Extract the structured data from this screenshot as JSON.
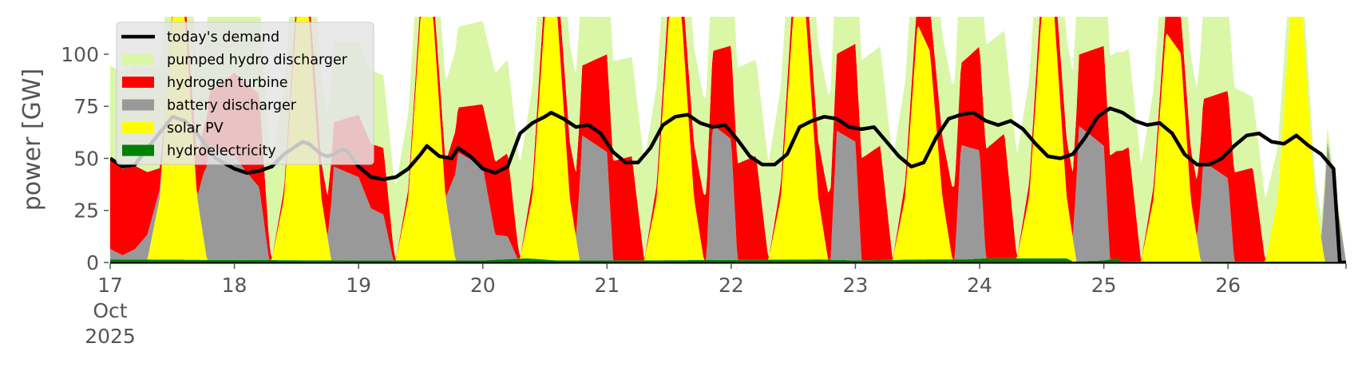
{
  "chart_data": {
    "type": "area",
    "title": "",
    "xlabel": "",
    "ylabel": "power [GW]",
    "xlim": [
      0,
      9.95
    ],
    "ylim": [
      0,
      118
    ],
    "grid": false,
    "stacked": true,
    "legend_position": "top-left",
    "x_unit": "days from 17 Oct 2025",
    "x_ticks": [
      {
        "x": 0,
        "lines": [
          "17",
          "Oct",
          "2025"
        ]
      },
      {
        "x": 1,
        "lines": [
          "18"
        ]
      },
      {
        "x": 2,
        "lines": [
          "19"
        ]
      },
      {
        "x": 3,
        "lines": [
          "20"
        ]
      },
      {
        "x": 4,
        "lines": [
          "21"
        ]
      },
      {
        "x": 5,
        "lines": [
          "22"
        ]
      },
      {
        "x": 6,
        "lines": [
          "23"
        ]
      },
      {
        "x": 7,
        "lines": [
          "24"
        ]
      },
      {
        "x": 8,
        "lines": [
          "25"
        ]
      },
      {
        "x": 9,
        "lines": [
          "26"
        ]
      }
    ],
    "y_ticks": [
      0,
      25,
      50,
      75,
      100
    ],
    "colors": {
      "demand": "#000000",
      "pumped_hydro": "#d9f7a6",
      "hydrogen": "#ff0000",
      "battery": "#999999",
      "solar": "#ffff00",
      "hydro": "#008000",
      "legend_bg": "#e5e5e5"
    },
    "legend": [
      {
        "label": "today's demand",
        "key": "demand",
        "kind": "line"
      },
      {
        "label": "pumped hydro discharger",
        "key": "pumped_hydro",
        "kind": "patch"
      },
      {
        "label": "hydrogen turbine",
        "key": "hydrogen",
        "kind": "patch"
      },
      {
        "label": "battery discharger",
        "key": "battery",
        "kind": "patch"
      },
      {
        "label": "solar PV",
        "key": "solar",
        "kind": "patch"
      },
      {
        "label": "hydroelectricity",
        "key": "hydro",
        "kind": "patch"
      }
    ],
    "series": [
      {
        "key": "hydro",
        "points": [
          [
            0,
            1.5
          ],
          [
            1,
            1.2
          ],
          [
            2,
            1
          ],
          [
            3,
            1
          ],
          [
            3.35,
            2
          ],
          [
            3.6,
            1
          ],
          [
            4,
            1
          ],
          [
            5,
            1.2
          ],
          [
            5.7,
            1.5
          ],
          [
            6,
            1
          ],
          [
            6.6,
            1.5
          ],
          [
            6.9,
            1.5
          ],
          [
            7.05,
            2
          ],
          [
            7.7,
            2
          ],
          [
            7.75,
            0.5
          ],
          [
            8,
            1
          ],
          [
            8.1,
            2
          ],
          [
            8.15,
            0.5
          ],
          [
            9,
            0.5
          ],
          [
            9.95,
            0.5
          ]
        ]
      },
      {
        "key": "solar",
        "points": [
          [
            0,
            0
          ],
          [
            0.3,
            0
          ],
          [
            0.4,
            30
          ],
          [
            0.5,
            118
          ],
          [
            0.6,
            118
          ],
          [
            0.7,
            30
          ],
          [
            0.78,
            0
          ],
          [
            1.3,
            0
          ],
          [
            1.4,
            30
          ],
          [
            1.5,
            118
          ],
          [
            1.6,
            118
          ],
          [
            1.7,
            30
          ],
          [
            1.78,
            0
          ],
          [
            2.3,
            0
          ],
          [
            2.4,
            30
          ],
          [
            2.5,
            118
          ],
          [
            2.6,
            118
          ],
          [
            2.7,
            30
          ],
          [
            2.78,
            0
          ],
          [
            3.3,
            0
          ],
          [
            3.4,
            30
          ],
          [
            3.5,
            118
          ],
          [
            3.6,
            118
          ],
          [
            3.7,
            30
          ],
          [
            3.78,
            0
          ],
          [
            4.3,
            0
          ],
          [
            4.4,
            30
          ],
          [
            4.5,
            118
          ],
          [
            4.6,
            118
          ],
          [
            4.7,
            30
          ],
          [
            4.78,
            0
          ],
          [
            5.3,
            0
          ],
          [
            5.4,
            30
          ],
          [
            5.5,
            118
          ],
          [
            5.6,
            118
          ],
          [
            5.7,
            30
          ],
          [
            5.78,
            0
          ],
          [
            6.3,
            0
          ],
          [
            6.4,
            30
          ],
          [
            6.5,
            113
          ],
          [
            6.6,
            100
          ],
          [
            6.7,
            30
          ],
          [
            6.78,
            0
          ],
          [
            7.3,
            0
          ],
          [
            7.4,
            30
          ],
          [
            7.5,
            118
          ],
          [
            7.6,
            118
          ],
          [
            7.7,
            30
          ],
          [
            7.78,
            0
          ],
          [
            8.3,
            0
          ],
          [
            8.4,
            30
          ],
          [
            8.5,
            110
          ],
          [
            8.62,
            100
          ],
          [
            8.7,
            30
          ],
          [
            8.78,
            0
          ],
          [
            9.3,
            0
          ],
          [
            9.4,
            30
          ],
          [
            9.5,
            118
          ],
          [
            9.6,
            118
          ],
          [
            9.7,
            30
          ],
          [
            9.78,
            0
          ],
          [
            9.95,
            0
          ]
        ]
      },
      {
        "key": "battery",
        "points": [
          [
            0,
            5
          ],
          [
            0.1,
            2
          ],
          [
            0.2,
            5
          ],
          [
            0.3,
            12
          ],
          [
            0.45,
            0
          ],
          [
            0.7,
            0
          ],
          [
            0.75,
            30
          ],
          [
            0.8,
            55
          ],
          [
            1,
            50
          ],
          [
            1.1,
            42
          ],
          [
            1.2,
            35
          ],
          [
            1.28,
            0
          ],
          [
            1.75,
            0
          ],
          [
            1.8,
            45
          ],
          [
            2,
            40
          ],
          [
            2.1,
            25
          ],
          [
            2.2,
            22
          ],
          [
            2.28,
            0
          ],
          [
            2.7,
            0
          ],
          [
            2.8,
            52
          ],
          [
            3,
            45
          ],
          [
            3.1,
            12
          ],
          [
            3.2,
            11
          ],
          [
            3.28,
            0
          ],
          [
            3.75,
            0
          ],
          [
            3.8,
            60
          ],
          [
            4,
            52
          ],
          [
            4.05,
            0
          ],
          [
            4.8,
            0
          ],
          [
            4.85,
            65
          ],
          [
            5,
            58
          ],
          [
            5.05,
            0
          ],
          [
            5.8,
            0
          ],
          [
            5.85,
            62
          ],
          [
            6,
            57
          ],
          [
            6.05,
            0
          ],
          [
            6.8,
            0
          ],
          [
            6.85,
            55
          ],
          [
            7,
            52
          ],
          [
            7.05,
            0
          ],
          [
            7.75,
            0
          ],
          [
            7.8,
            65
          ],
          [
            8,
            55
          ],
          [
            8.05,
            0
          ],
          [
            8.75,
            0
          ],
          [
            8.8,
            48
          ],
          [
            9,
            40
          ],
          [
            9.05,
            0
          ],
          [
            9.75,
            0
          ],
          [
            9.8,
            58
          ],
          [
            9.95,
            0
          ]
        ]
      },
      {
        "key": "hydrogen",
        "points": [
          [
            0,
            43
          ],
          [
            0.2,
            40
          ],
          [
            0.3,
            30
          ],
          [
            0.45,
            0
          ],
          [
            1,
            40
          ],
          [
            1.2,
            45
          ],
          [
            1.3,
            0
          ],
          [
            2,
            30
          ],
          [
            2.2,
            32
          ],
          [
            2.3,
            0
          ],
          [
            3,
            30
          ],
          [
            3.2,
            40
          ],
          [
            3.3,
            0
          ],
          [
            4,
            47
          ],
          [
            4.2,
            50
          ],
          [
            4.3,
            0
          ],
          [
            5,
            45
          ],
          [
            5.2,
            50
          ],
          [
            5.3,
            0
          ],
          [
            6,
            47
          ],
          [
            6.2,
            55
          ],
          [
            6.3,
            0
          ],
          [
            7,
            50
          ],
          [
            7.2,
            60
          ],
          [
            7.3,
            0
          ],
          [
            8,
            48
          ],
          [
            8.2,
            55
          ],
          [
            8.3,
            0
          ],
          [
            9,
            42
          ],
          [
            9.2,
            45
          ],
          [
            9.3,
            0
          ],
          [
            9.95,
            0
          ]
        ]
      },
      {
        "key": "pumped_hydro",
        "points": [
          [
            0,
            45
          ],
          [
            0.3,
            50
          ],
          [
            1,
            43
          ],
          [
            1.3,
            48
          ],
          [
            2,
            35
          ],
          [
            2.2,
            35
          ],
          [
            3,
            40
          ],
          [
            3.2,
            45
          ],
          [
            4,
            48
          ],
          [
            5,
            46
          ],
          [
            6,
            47
          ],
          [
            7,
            50
          ],
          [
            8,
            48
          ],
          [
            9,
            43
          ],
          [
            9.95,
            0
          ]
        ]
      }
    ],
    "demand": [
      [
        0,
        50
      ],
      [
        0.1,
        46
      ],
      [
        0.2,
        47
      ],
      [
        0.3,
        55
      ],
      [
        0.45,
        66
      ],
      [
        0.5,
        70
      ],
      [
        0.6,
        68
      ],
      [
        0.7,
        62
      ],
      [
        0.85,
        50
      ],
      [
        1,
        45
      ],
      [
        1.1,
        43
      ],
      [
        1.2,
        44
      ],
      [
        1.3,
        46
      ],
      [
        1.4,
        52
      ],
      [
        1.5,
        56
      ],
      [
        1.55,
        58
      ],
      [
        1.6,
        57
      ],
      [
        1.7,
        52
      ],
      [
        1.75,
        51
      ],
      [
        1.8,
        52
      ],
      [
        1.85,
        54
      ],
      [
        1.9,
        54
      ],
      [
        2,
        46
      ],
      [
        2.1,
        41
      ],
      [
        2.2,
        40
      ],
      [
        2.3,
        41
      ],
      [
        2.4,
        45
      ],
      [
        2.5,
        52
      ],
      [
        2.55,
        56
      ],
      [
        2.65,
        51
      ],
      [
        2.75,
        50
      ],
      [
        2.8,
        55
      ],
      [
        2.9,
        51
      ],
      [
        3,
        45
      ],
      [
        3.1,
        43
      ],
      [
        3.2,
        46
      ],
      [
        3.3,
        62
      ],
      [
        3.4,
        67
      ],
      [
        3.5,
        70
      ],
      [
        3.55,
        72
      ],
      [
        3.65,
        69
      ],
      [
        3.75,
        65
      ],
      [
        3.85,
        66
      ],
      [
        3.95,
        62
      ],
      [
        4.05,
        53
      ],
      [
        4.15,
        48
      ],
      [
        4.25,
        48
      ],
      [
        4.35,
        55
      ],
      [
        4.45,
        66
      ],
      [
        4.55,
        70
      ],
      [
        4.65,
        71
      ],
      [
        4.75,
        67
      ],
      [
        4.85,
        65
      ],
      [
        4.95,
        66
      ],
      [
        5.05,
        59
      ],
      [
        5.15,
        51
      ],
      [
        5.25,
        47
      ],
      [
        5.35,
        47
      ],
      [
        5.45,
        52
      ],
      [
        5.55,
        65
      ],
      [
        5.65,
        68
      ],
      [
        5.75,
        70
      ],
      [
        5.85,
        69
      ],
      [
        5.95,
        65
      ],
      [
        6.05,
        64
      ],
      [
        6.15,
        65
      ],
      [
        6.25,
        58
      ],
      [
        6.35,
        51
      ],
      [
        6.45,
        46
      ],
      [
        6.55,
        48
      ],
      [
        6.65,
        60
      ],
      [
        6.75,
        69
      ],
      [
        6.85,
        71
      ],
      [
        6.95,
        72
      ],
      [
        7.05,
        68
      ],
      [
        7.15,
        66
      ],
      [
        7.25,
        68
      ],
      [
        7.35,
        64
      ],
      [
        7.45,
        57
      ],
      [
        7.55,
        51
      ],
      [
        7.65,
        50
      ],
      [
        7.75,
        52
      ],
      [
        7.85,
        60
      ],
      [
        7.95,
        70
      ],
      [
        8.05,
        74
      ],
      [
        8.15,
        72
      ],
      [
        8.25,
        68
      ],
      [
        8.35,
        66
      ],
      [
        8.45,
        67
      ],
      [
        8.55,
        62
      ],
      [
        8.65,
        52
      ],
      [
        8.75,
        47
      ],
      [
        8.85,
        47
      ],
      [
        8.95,
        50
      ],
      [
        9.05,
        56
      ],
      [
        9.15,
        61
      ],
      [
        9.25,
        62
      ],
      [
        9.35,
        58
      ],
      [
        9.45,
        57
      ],
      [
        9.55,
        61
      ],
      [
        9.65,
        56
      ],
      [
        9.75,
        52
      ],
      [
        9.85,
        45
      ],
      [
        9.9,
        0
      ],
      [
        9.95,
        0
      ]
    ]
  }
}
